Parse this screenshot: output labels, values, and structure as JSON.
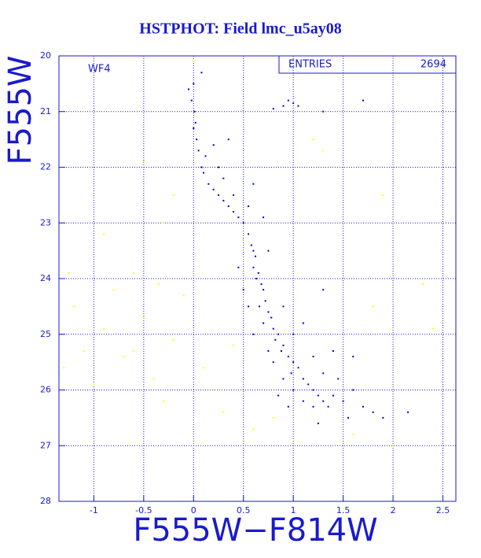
{
  "chart_data": {
    "type": "scatter",
    "title": "HSTPHOT: Field lmc_u5ay08",
    "xlabel": "F555W−F814W",
    "ylabel": "F555W",
    "panel_label": "WF4",
    "stats_label": "ENTRIES",
    "stats_value": 2694,
    "xlim": [
      -1.35,
      2.63
    ],
    "ylim": [
      28,
      20
    ],
    "xticks": [
      -1,
      -0.5,
      0,
      0.5,
      1,
      1.5,
      2,
      2.5
    ],
    "yticks": [
      20,
      21,
      22,
      23,
      24,
      25,
      26,
      27,
      28
    ],
    "grid": true,
    "series": [
      {
        "color": "#0000cc",
        "x": [
          0.0,
          -0.02,
          0.01,
          0.0,
          0.03,
          0.05,
          0.08,
          0.02,
          0.1,
          0.15,
          0.2,
          0.25,
          0.3,
          0.35,
          0.4,
          0.45,
          0.5,
          0.55,
          0.58,
          0.6,
          0.62,
          0.6,
          0.65,
          0.63,
          0.68,
          0.7,
          0.72,
          0.66,
          0.75,
          0.78,
          0.7,
          0.8,
          0.85,
          0.82,
          0.9,
          0.88,
          0.95,
          1.0,
          1.05,
          0.98,
          1.1,
          1.15,
          1.2,
          1.25,
          1.3,
          1.35,
          1.4,
          1.5,
          1.2,
          1.1,
          1.0,
          0.9,
          0.8,
          0.75,
          0.6,
          0.55,
          0.5,
          0.45,
          0.9,
          1.0,
          1.2,
          1.3,
          1.45,
          1.6,
          1.7,
          1.8,
          1.9,
          1.55,
          1.25,
          0.95,
          0.85,
          0.9,
          0.95,
          1.0,
          1.05,
          0.8,
          1.3,
          1.7,
          0.2,
          0.25,
          0.3,
          0.4,
          0.55,
          0.7,
          0.75,
          1.1,
          1.4,
          2.15,
          0.08,
          -0.05,
          0.12,
          0.35,
          0.6,
          1.3,
          1.6
        ],
        "values": [
          20.5,
          20.8,
          21.0,
          21.3,
          21.5,
          21.7,
          22.0,
          21.2,
          22.1,
          22.3,
          22.4,
          22.5,
          22.6,
          22.7,
          22.8,
          22.9,
          23.0,
          23.2,
          23.4,
          23.5,
          23.6,
          23.8,
          23.9,
          24.0,
          24.1,
          24.2,
          24.4,
          24.5,
          24.6,
          24.7,
          24.8,
          24.9,
          25.0,
          25.1,
          25.2,
          25.3,
          25.4,
          25.5,
          25.6,
          25.7,
          25.8,
          25.9,
          26.0,
          26.1,
          26.2,
          26.3,
          26.1,
          26.2,
          26.3,
          26.2,
          26.0,
          25.8,
          25.5,
          25.3,
          25.0,
          24.5,
          24.2,
          23.8,
          24.5,
          25.0,
          25.4,
          25.7,
          25.8,
          26.0,
          26.3,
          26.4,
          26.5,
          26.5,
          26.6,
          26.3,
          26.1,
          20.9,
          20.8,
          20.85,
          20.9,
          20.95,
          21.0,
          20.8,
          21.6,
          22.0,
          22.2,
          22.5,
          22.7,
          22.9,
          23.5,
          24.8,
          25.3,
          26.4,
          20.3,
          20.6,
          21.8,
          21.5,
          22.3,
          24.2,
          25.4
        ]
      },
      {
        "color": "#ffff00",
        "x": [
          -1.2,
          -1.1,
          -0.9,
          -0.7,
          -0.5,
          -0.4,
          -0.3,
          -0.2,
          -0.1,
          0.1,
          0.2,
          0.3,
          0.4,
          -1.3,
          -1.0,
          -0.8,
          -0.6,
          -0.5,
          -0.3,
          -0.2,
          0.0,
          0.5,
          1.2,
          1.3,
          1.9,
          2.3,
          2.4,
          1.8,
          1.6,
          2.0,
          0.6,
          0.8,
          -0.9,
          -1.25,
          -0.6,
          -0.35
        ],
        "values": [
          24.5,
          25.3,
          24.9,
          25.4,
          24.7,
          25.8,
          26.2,
          25.1,
          24.3,
          25.6,
          26.0,
          26.4,
          25.2,
          25.6,
          25.9,
          24.2,
          23.9,
          21.9,
          23.0,
          22.5,
          20.1,
          23.3,
          21.5,
          21.7,
          22.5,
          24.1,
          24.9,
          24.5,
          26.8,
          27.0,
          26.7,
          26.5,
          23.2,
          23.9,
          25.3,
          24.1
        ]
      }
    ]
  }
}
